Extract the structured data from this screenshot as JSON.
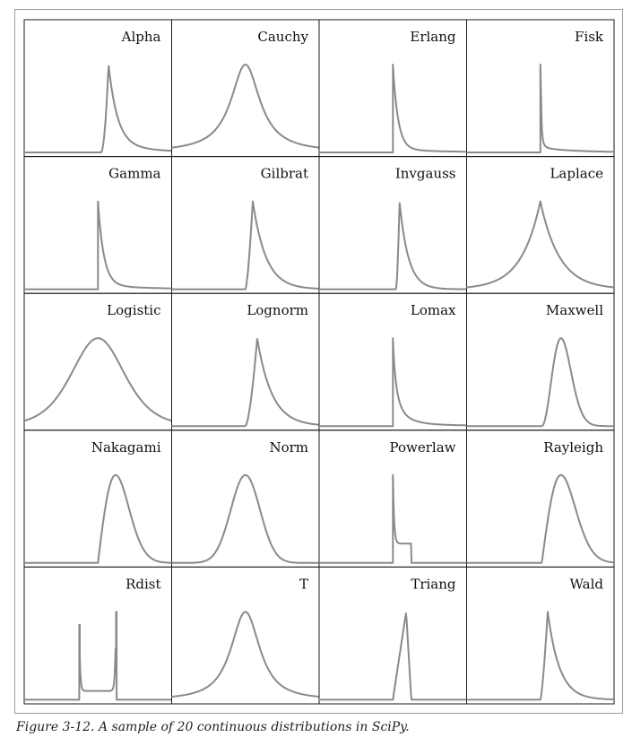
{
  "caption": "Figure 3-12.  A sample of 20 continuous distributions in SciPy.",
  "style": {
    "curve_color": "#8a8a8a",
    "border_color": "#1a1a1a"
  },
  "chart_data": [
    {
      "type": "line",
      "title": "Alpha",
      "shape": "alpha"
    },
    {
      "type": "line",
      "title": "Cauchy",
      "shape": "cauchy"
    },
    {
      "type": "line",
      "title": "Erlang",
      "shape": "erlang"
    },
    {
      "type": "line",
      "title": "Fisk",
      "shape": "fisk"
    },
    {
      "type": "line",
      "title": "Gamma",
      "shape": "gamma"
    },
    {
      "type": "line",
      "title": "Gilbrat",
      "shape": "gilbrat"
    },
    {
      "type": "line",
      "title": "Invgauss",
      "shape": "invgauss"
    },
    {
      "type": "line",
      "title": "Laplace",
      "shape": "laplace"
    },
    {
      "type": "line",
      "title": "Logistic",
      "shape": "logistic"
    },
    {
      "type": "line",
      "title": "Lognorm",
      "shape": "lognorm"
    },
    {
      "type": "line",
      "title": "Lomax",
      "shape": "lomax"
    },
    {
      "type": "line",
      "title": "Maxwell",
      "shape": "maxwell"
    },
    {
      "type": "line",
      "title": "Nakagami",
      "shape": "nakagami"
    },
    {
      "type": "line",
      "title": "Norm",
      "shape": "norm"
    },
    {
      "type": "line",
      "title": "Powerlaw",
      "shape": "powerlaw"
    },
    {
      "type": "line",
      "title": "Rayleigh",
      "shape": "rayleigh"
    },
    {
      "type": "line",
      "title": "Rdist",
      "shape": "rdist"
    },
    {
      "type": "line",
      "title": "T",
      "shape": "t"
    },
    {
      "type": "line",
      "title": "Triang",
      "shape": "triang"
    },
    {
      "type": "line",
      "title": "Wald",
      "shape": "wald"
    }
  ]
}
